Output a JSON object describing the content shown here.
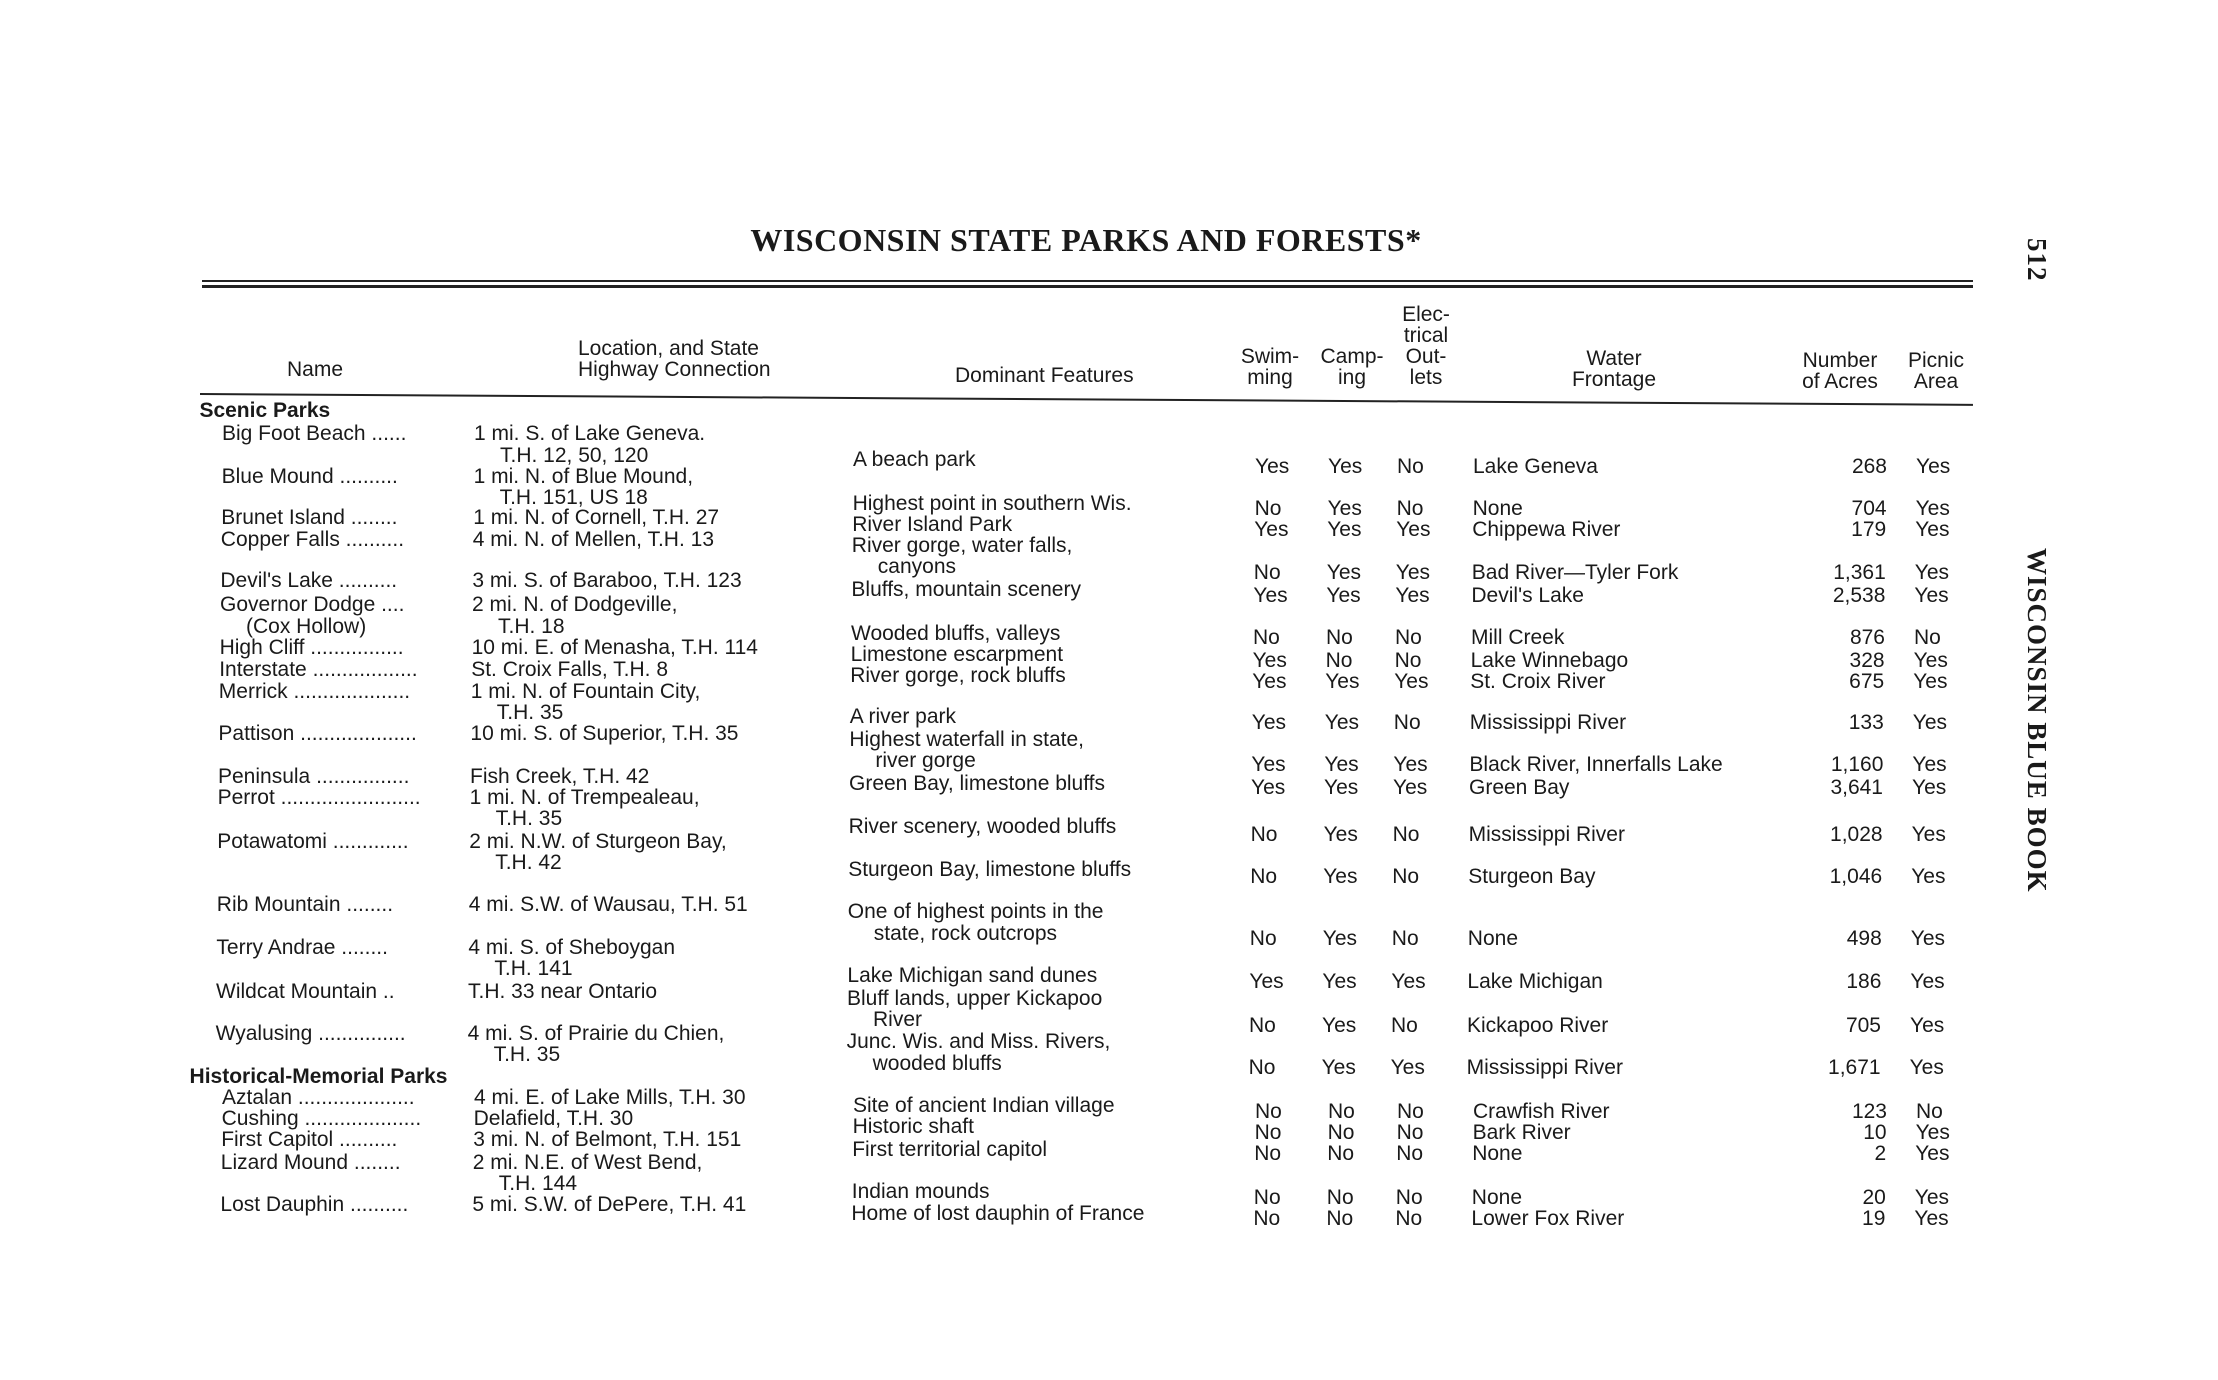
{
  "page": {
    "title": "WISCONSIN STATE PARKS AND FORESTS*",
    "page_number": "512",
    "running_head": "WISCONSIN BLUE BOOK"
  },
  "headers": {
    "name": [
      "Name"
    ],
    "location": [
      "Location, and State",
      "Highway Connection"
    ],
    "features": [
      "Dominant Features"
    ],
    "swimming": [
      "Swim-",
      "ming"
    ],
    "camping": [
      "Camp-",
      "ing"
    ],
    "electrical": [
      "Elec-",
      "trical",
      "Out-",
      "lets"
    ],
    "water": [
      "Water",
      "Frontage"
    ],
    "acres": [
      "Number",
      "of Acres"
    ],
    "picnic": [
      "Picnic",
      "Area"
    ]
  },
  "sections": [
    {
      "title": "Scenic Parks",
      "rows": [
        {
          "name": [
            "Big Foot Beach ......"
          ],
          "location": [
            "1 mi. S. of Lake Geneva.",
            "T.H. 12, 50, 120"
          ],
          "features": [
            "A beach park"
          ],
          "swimming": "Yes",
          "camping": "Yes",
          "electrical": "No",
          "water": "Lake Geneva",
          "acres": "268",
          "picnic": "Yes"
        },
        {
          "name": [
            "Blue Mound .........."
          ],
          "location": [
            "1 mi. N. of Blue Mound,",
            "T.H. 151, US 18"
          ],
          "features": [
            "Highest point in southern Wis."
          ],
          "swimming": "No",
          "camping": "Yes",
          "electrical": "No",
          "water": "None",
          "acres": "704",
          "picnic": "Yes"
        },
        {
          "name": [
            "Brunet Island ........"
          ],
          "location": [
            "1 mi. N. of Cornell, T.H. 27"
          ],
          "features": [
            "River Island Park"
          ],
          "swimming": "Yes",
          "camping": "Yes",
          "electrical": "Yes",
          "water": "Chippewa River",
          "acres": "179",
          "picnic": "Yes"
        },
        {
          "name": [
            "Copper Falls .........."
          ],
          "location": [
            "4 mi. N. of Mellen, T.H. 13"
          ],
          "features": [
            "River gorge, water falls,",
            "canyons"
          ],
          "swimming": "No",
          "camping": "Yes",
          "electrical": "Yes",
          "water": "Bad River—Tyler Fork",
          "acres": "1,361",
          "picnic": "Yes"
        },
        {
          "name": [
            "Devil's Lake .........."
          ],
          "location": [
            "3 mi. S. of Baraboo, T.H. 123"
          ],
          "features": [
            "Bluffs, mountain scenery"
          ],
          "swimming": "Yes",
          "camping": "Yes",
          "electrical": "Yes",
          "water": "Devil's Lake",
          "acres": "2,538",
          "picnic": "Yes"
        },
        {
          "name": [
            "Governor Dodge ....",
            "(Cox Hollow)"
          ],
          "location": [
            "2 mi. N. of Dodgeville,",
            "T.H. 18"
          ],
          "features": [
            "Wooded bluffs, valleys"
          ],
          "swimming": "No",
          "camping": "No",
          "electrical": "No",
          "water": "Mill Creek",
          "acres": "876",
          "picnic": "No"
        },
        {
          "name": [
            "High Cliff ................"
          ],
          "location": [
            "10 mi. E. of Menasha, T.H. 114"
          ],
          "features": [
            "Limestone escarpment"
          ],
          "swimming": "Yes",
          "camping": "No",
          "electrical": "No",
          "water": "Lake Winnebago",
          "acres": "328",
          "picnic": "Yes"
        },
        {
          "name": [
            "Interstate .................."
          ],
          "location": [
            "St. Croix Falls, T.H. 8"
          ],
          "features": [
            "River gorge, rock bluffs"
          ],
          "swimming": "Yes",
          "camping": "Yes",
          "electrical": "Yes",
          "water": "St. Croix River",
          "acres": "675",
          "picnic": "Yes"
        },
        {
          "name": [
            "Merrick ...................."
          ],
          "location": [
            "1 mi. N. of Fountain City,",
            "T.H. 35"
          ],
          "features": [
            "A river park"
          ],
          "swimming": "Yes",
          "camping": "Yes",
          "electrical": "No",
          "water": "Mississippi River",
          "acres": "133",
          "picnic": "Yes"
        },
        {
          "name": [
            "Pattison ...................."
          ],
          "location": [
            "10 mi. S. of Superior, T.H. 35"
          ],
          "features": [
            "Highest waterfall in state,",
            "river gorge"
          ],
          "swimming": "Yes",
          "camping": "Yes",
          "electrical": "Yes",
          "water": "Black River, Innerfalls Lake",
          "acres": "1,160",
          "picnic": "Yes"
        },
        {
          "name": [
            "Peninsula ................"
          ],
          "location": [
            "Fish Creek, T.H. 42"
          ],
          "features": [
            "Green Bay, limestone bluffs"
          ],
          "swimming": "Yes",
          "camping": "Yes",
          "electrical": "Yes",
          "water": "Green Bay",
          "acres": "3,641",
          "picnic": "Yes"
        },
        {
          "name": [
            "Perrot ........................"
          ],
          "location": [
            "1 mi. N. of Trempealeau,",
            "T.H. 35"
          ],
          "features": [
            "River scenery, wooded bluffs"
          ],
          "swimming": "No",
          "camping": "Yes",
          "electrical": "No",
          "water": "Mississippi River",
          "acres": "1,028",
          "picnic": "Yes"
        },
        {
          "name": [
            "Potawatomi ............."
          ],
          "location": [
            "2 mi. N.W. of Sturgeon Bay,",
            "T.H. 42"
          ],
          "features": [
            "Sturgeon Bay, limestone bluffs"
          ],
          "swimming": "No",
          "camping": "Yes",
          "electrical": "No",
          "water": "Sturgeon Bay",
          "acres": "1,046",
          "picnic": "Yes"
        },
        {
          "name": [
            "Rib Mountain ........"
          ],
          "location": [
            "4 mi. S.W. of Wausau, T.H. 51"
          ],
          "features": [
            "One of highest points in the",
            "state, rock outcrops"
          ],
          "swimming": "No",
          "camping": "Yes",
          "electrical": "No",
          "water": "None",
          "acres": "498",
          "picnic": "Yes"
        },
        {
          "name": [
            "Terry Andrae ........"
          ],
          "location": [
            "4 mi. S. of Sheboygan",
            "T.H. 141"
          ],
          "features": [
            "Lake Michigan sand dunes"
          ],
          "swimming": "Yes",
          "camping": "Yes",
          "electrical": "Yes",
          "water": "Lake Michigan",
          "acres": "186",
          "picnic": "Yes"
        },
        {
          "name": [
            "Wildcat Mountain .."
          ],
          "location": [
            "T.H. 33 near Ontario"
          ],
          "features": [
            "Bluff lands, upper Kickapoo",
            "River"
          ],
          "swimming": "No",
          "camping": "Yes",
          "electrical": "No",
          "water": "Kickapoo River",
          "acres": "705",
          "picnic": "Yes"
        },
        {
          "name": [
            "Wyalusing ..............."
          ],
          "location": [
            "4 mi. S. of Prairie du Chien,",
            "T.H. 35"
          ],
          "features": [
            "Junc. Wis. and Miss. Rivers,",
            "wooded bluffs"
          ],
          "swimming": "No",
          "camping": "Yes",
          "electrical": "Yes",
          "water": "Mississippi River",
          "acres": "1,671",
          "picnic": "Yes"
        }
      ]
    },
    {
      "title": "Historical-Memorial Parks",
      "rows": [
        {
          "name": [
            "Aztalan ...................."
          ],
          "location": [
            "4 mi. E. of Lake Mills, T.H. 30"
          ],
          "features": [
            "Site of ancient Indian village"
          ],
          "swimming": "No",
          "camping": "No",
          "electrical": "No",
          "water": "Crawfish River",
          "acres": "123",
          "picnic": "No"
        },
        {
          "name": [
            "Cushing ...................."
          ],
          "location": [
            "Delafield, T.H. 30"
          ],
          "features": [
            "Historic shaft"
          ],
          "swimming": "No",
          "camping": "No",
          "electrical": "No",
          "water": "Bark River",
          "acres": "10",
          "picnic": "Yes"
        },
        {
          "name": [
            "First Capitol .........."
          ],
          "location": [
            "3 mi. N. of Belmont, T.H. 151"
          ],
          "features": [
            "First territorial capitol"
          ],
          "swimming": "No",
          "camping": "No",
          "electrical": "No",
          "water": "None",
          "acres": "2",
          "picnic": "Yes"
        },
        {
          "name": [
            "Lizard Mound ........"
          ],
          "location": [
            "2 mi. N.E. of West Bend,",
            "T.H. 144"
          ],
          "features": [
            "Indian mounds"
          ],
          "swimming": "No",
          "camping": "No",
          "electrical": "No",
          "water": "None",
          "acres": "20",
          "picnic": "Yes"
        },
        {
          "name": [
            "Lost Dauphin .........."
          ],
          "location": [
            "5 mi. S.W. of DePere, T.H. 41"
          ],
          "features": [
            "Home of lost dauphin of France"
          ],
          "swimming": "No",
          "camping": "No",
          "electrical": "No",
          "water": "Lower Fox River",
          "acres": "19",
          "picnic": "Yes"
        }
      ]
    }
  ]
}
